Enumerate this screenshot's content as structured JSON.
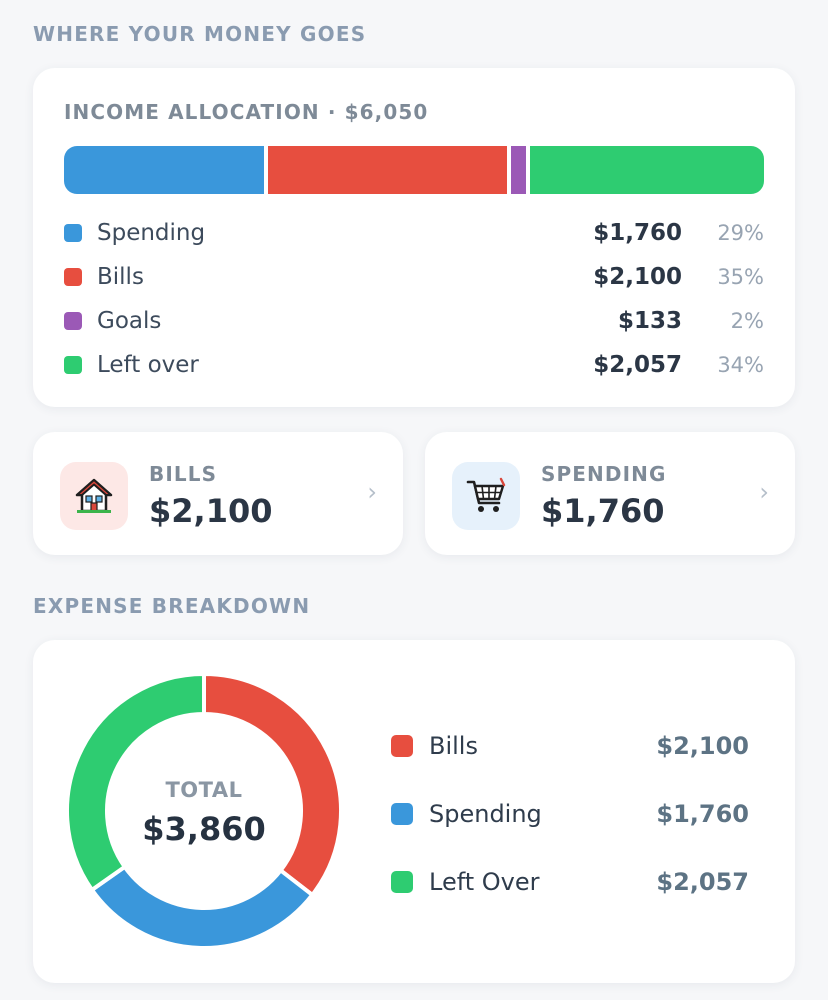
{
  "sections": {
    "money_title": "WHERE YOUR MONEY GOES",
    "expense_title": "EXPENSE BREAKDOWN"
  },
  "allocation": {
    "title": "INCOME ALLOCATION · $6,050",
    "segments": [
      {
        "name": "Spending",
        "amount": "$1,760",
        "percent": "29%",
        "value": 1760,
        "color": "#3a97db"
      },
      {
        "name": "Bills",
        "amount": "$2,100",
        "percent": "35%",
        "value": 2100,
        "color": "#e74e3f"
      },
      {
        "name": "Goals",
        "amount": "$133",
        "percent": "2%",
        "value": 133,
        "color": "#9b59b6"
      },
      {
        "name": "Left over",
        "amount": "$2,057",
        "percent": "34%",
        "value": 2057,
        "color": "#2ecc71"
      }
    ]
  },
  "summary": {
    "bills": {
      "label": "BILLS",
      "value": "$2,100",
      "icon": "house-icon",
      "icon_bg": "#fde8e6"
    },
    "spending": {
      "label": "SPENDING",
      "value": "$1,760",
      "icon": "shopping-cart-icon",
      "icon_bg": "#e6f1fb"
    },
    "chevron": "›"
  },
  "breakdown": {
    "total_label": "TOTAL",
    "total_value": "$3,860",
    "items": [
      {
        "name": "Bills",
        "amount": "$2,100",
        "value": 2100,
        "color": "#e74e3f"
      },
      {
        "name": "Spending",
        "amount": "$1,760",
        "value": 1760,
        "color": "#3a97db"
      },
      {
        "name": "Left Over",
        "amount": "$2,057",
        "value": 2057,
        "color": "#2ecc71"
      }
    ]
  }
}
